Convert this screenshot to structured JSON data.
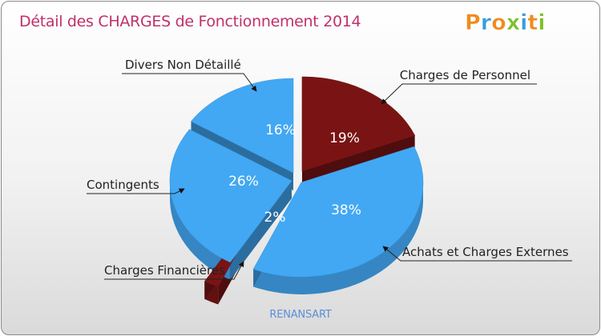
{
  "title": "Détail des CHARGES de Fonctionnement 2014",
  "brand": {
    "letters": [
      "P",
      "r",
      "o",
      "x",
      "i",
      "t",
      "i"
    ]
  },
  "footer": "RENANSART",
  "chart_data": {
    "type": "pie",
    "title": "Détail des CHARGES de Fonctionnement 2014",
    "slices": [
      {
        "label": "Charges de Personnel",
        "value": 19,
        "display": "19%",
        "color": "#7a1414"
      },
      {
        "label": "Achats et Charges Externes",
        "value": 38,
        "display": "38%",
        "color": "#42a8f4"
      },
      {
        "label": "Charges Financières",
        "value": 2,
        "display": "2%",
        "color": "#7a1414"
      },
      {
        "label": "Contingents",
        "value": 26,
        "display": "26%",
        "color": "#42a8f4"
      },
      {
        "label": "Divers Non Détaillé",
        "value": 16,
        "display": "16%",
        "color": "#42a8f4"
      }
    ]
  }
}
